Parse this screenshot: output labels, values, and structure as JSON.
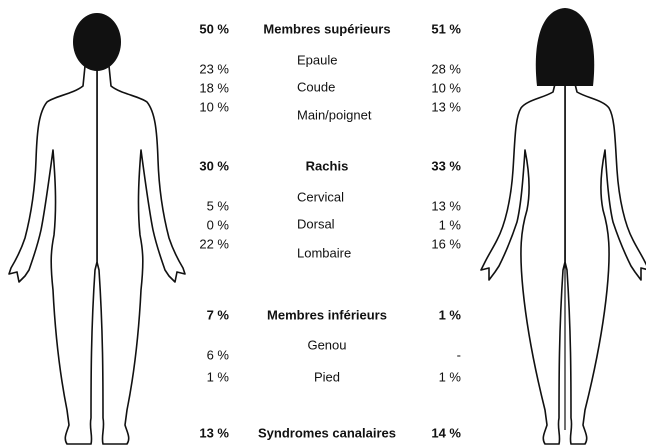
{
  "sections": [
    {
      "title": "Membres supérieurs",
      "left": "50 %",
      "right": "51 %",
      "items": [
        {
          "label": "Epaule",
          "left": "23 %",
          "right": "28 %"
        },
        {
          "label": "Coude",
          "left": "18 %",
          "right": "10 %"
        },
        {
          "label": "Main/poignet",
          "left": "10 %",
          "right": "13 %"
        }
      ]
    },
    {
      "title": "Rachis",
      "left": "30 %",
      "right": "33 %",
      "items": [
        {
          "label": "Cervical",
          "left": "5 %",
          "right": "13 %"
        },
        {
          "label": "Dorsal",
          "left": "0 %",
          "right": "1 %"
        },
        {
          "label": "Lombaire",
          "left": "22 %",
          "right": "16 %"
        }
      ]
    },
    {
      "title": "Membres inférieurs",
      "left": "7 %",
      "right": "1 %",
      "items": [
        {
          "label": "Genou",
          "left": "6 %",
          "right": "-"
        },
        {
          "label": "Pied",
          "left": "1 %",
          "right": "1 %"
        }
      ]
    },
    {
      "title": "Syndromes canalaires",
      "left": "13 %",
      "right": "14 %",
      "items": []
    }
  ]
}
